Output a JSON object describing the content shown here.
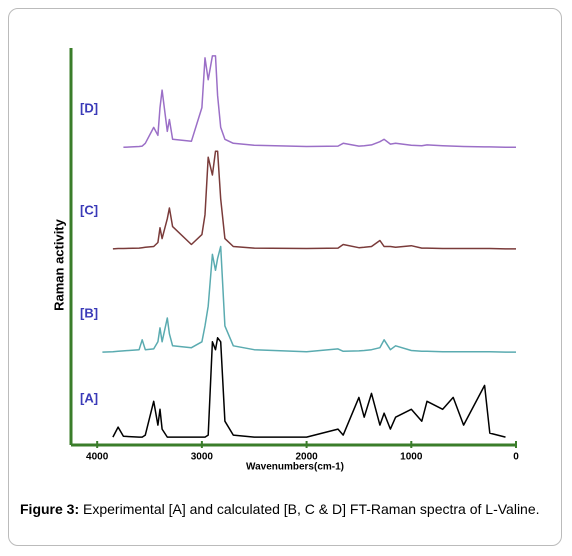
{
  "chart_data": {
    "type": "line",
    "y_label": "Raman activity",
    "x_label": "Wavenumbers(cm-1)",
    "xlim": [
      4250,
      0
    ],
    "xticks": [
      4000,
      3000,
      2000,
      1000,
      0
    ],
    "ylim": [
      0,
      100
    ],
    "axis_color": "#3a7d2a",
    "label_color": "#3a3ab8",
    "x": [
      3950,
      3850,
      3800,
      3750,
      3600,
      3570,
      3540,
      3460,
      3420,
      3400,
      3380,
      3330,
      3310,
      3280,
      3100,
      3000,
      2970,
      2940,
      2900,
      2870,
      2850,
      2820,
      2780,
      2700,
      2500,
      2000,
      1700,
      1650,
      1500,
      1450,
      1380,
      1300,
      1260,
      1200,
      1150,
      1000,
      900,
      850,
      700,
      600,
      500,
      300,
      250,
      100,
      0
    ],
    "series": [
      {
        "name": "[A]",
        "color": "#000000",
        "values": [
          null,
          2,
          4.5,
          2.2,
          2,
          2,
          2.5,
          11,
          5,
          9,
          4,
          2,
          2,
          2,
          2,
          2,
          2,
          2.5,
          26,
          24,
          27,
          26,
          6,
          2.5,
          2,
          2,
          4,
          2.5,
          12,
          7,
          13,
          5,
          8,
          4,
          7,
          9,
          6,
          11,
          9,
          12,
          5,
          15,
          3,
          2,
          null
        ]
      },
      {
        "name": "[B]",
        "color": "#5aabb0",
        "values": [
          23.4,
          23.5,
          23.6,
          23.7,
          24,
          26.5,
          24,
          24.2,
          26,
          29.5,
          26,
          32,
          28,
          25,
          24.5,
          26,
          30,
          35,
          48,
          44,
          47,
          50,
          30,
          25,
          24,
          23.5,
          24.2,
          23.6,
          23.7,
          23.8,
          24,
          24.5,
          26.5,
          24,
          25,
          23.8,
          23.6,
          23.6,
          23.5,
          23.5,
          23.5,
          23.5,
          23.5,
          23.4,
          23.4
        ]
      },
      {
        "name": "[C]",
        "color": "#7a3b3a",
        "values": [
          null,
          49.4,
          49.5,
          49.5,
          49.6,
          49.7,
          49.8,
          50,
          51,
          54.7,
          52,
          57,
          59.7,
          55,
          50.5,
          53,
          58,
          72.5,
          68,
          74,
          74,
          62,
          52,
          50,
          49.6,
          49.5,
          49.6,
          50.5,
          49.7,
          49.8,
          50,
          51.5,
          50,
          50,
          49.8,
          50.2,
          49.6,
          49.6,
          49.5,
          49.5,
          49.5,
          49.5,
          49.5,
          49.4,
          49.4
        ]
      },
      {
        "name": "[D]",
        "color": "#9b6fc7",
        "values": [
          null,
          null,
          null,
          75,
          75.2,
          75.3,
          76,
          80,
          78,
          85,
          89.4,
          79,
          82,
          77,
          76.5,
          85,
          97.5,
          92,
          98,
          98,
          88,
          80,
          77,
          76,
          75.5,
          75.2,
          75.3,
          76,
          75.3,
          75.4,
          75.6,
          76.4,
          77,
          75.8,
          76,
          75.5,
          75.4,
          75.6,
          75.4,
          75.3,
          75.2,
          75.1,
          75.1,
          75,
          75
        ]
      }
    ],
    "caption_label": "Figure 3:",
    "caption": "Experimental [A] and calculated [B, C & D] FT-Raman spectra of L-Valine."
  }
}
